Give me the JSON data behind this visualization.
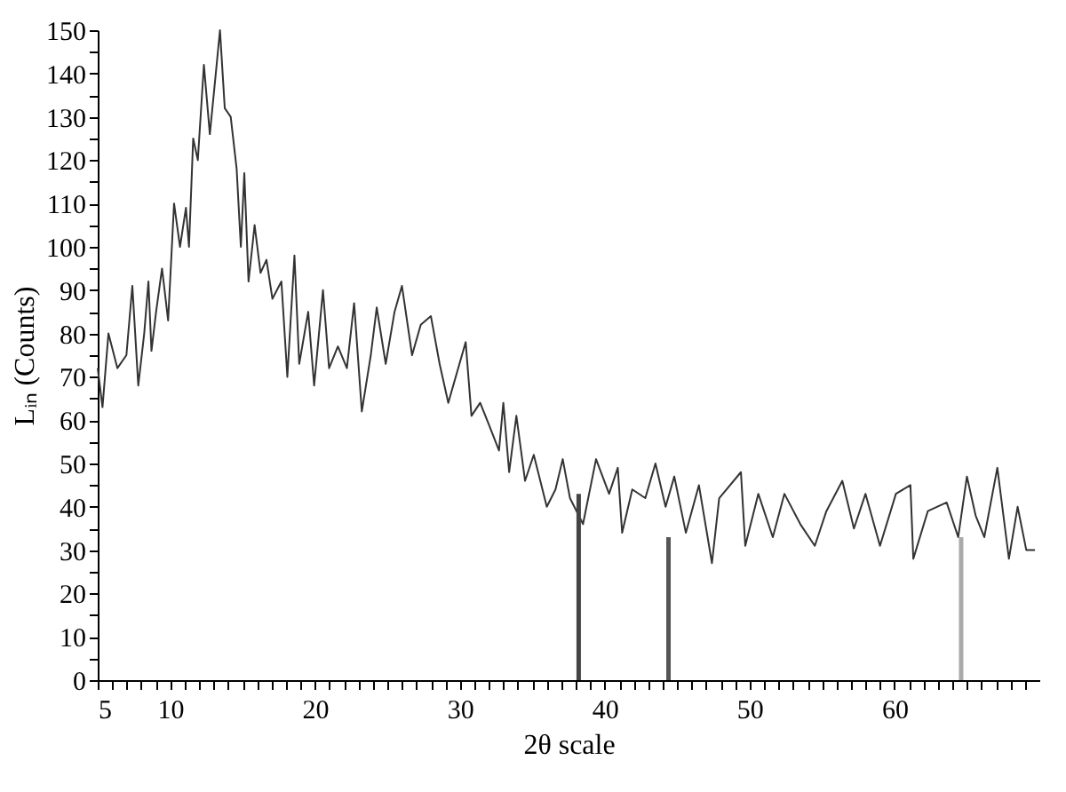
{
  "chart_data": {
    "type": "line",
    "xlabel": "2θ scale",
    "ylabel": "Lᵢₙ (Counts)",
    "xlim": [
      5,
      70
    ],
    "ylim": [
      0,
      150
    ],
    "xticks": [
      5,
      {
        "value": 6,
        "label": null
      },
      {
        "value": 7,
        "label": null
      },
      {
        "value": 8,
        "label": null
      },
      {
        "value": 9,
        "label": null
      },
      10,
      {
        "value": 11,
        "label": null
      },
      {
        "value": 12,
        "label": null
      },
      {
        "value": 13,
        "label": null
      },
      {
        "value": 14,
        "label": null
      },
      {
        "value": 15,
        "label": null
      },
      {
        "value": 16,
        "label": null
      },
      {
        "value": 17,
        "label": null
      },
      {
        "value": 18,
        "label": null
      },
      {
        "value": 19,
        "label": null
      },
      20,
      {
        "value": 21,
        "label": null
      },
      {
        "value": 22,
        "label": null
      },
      {
        "value": 23,
        "label": null
      },
      {
        "value": 24,
        "label": null
      },
      {
        "value": 25,
        "label": null
      },
      {
        "value": 26,
        "label": null
      },
      {
        "value": 27,
        "label": null
      },
      {
        "value": 28,
        "label": null
      },
      {
        "value": 29,
        "label": null
      },
      30,
      {
        "value": 31,
        "label": null
      },
      {
        "value": 32,
        "label": null
      },
      {
        "value": 33,
        "label": null
      },
      {
        "value": 34,
        "label": null
      },
      {
        "value": 35,
        "label": null
      },
      {
        "value": 36,
        "label": null
      },
      {
        "value": 37,
        "label": null
      },
      {
        "value": 38,
        "label": null
      },
      {
        "value": 39,
        "label": null
      },
      40,
      {
        "value": 41,
        "label": null
      },
      {
        "value": 42,
        "label": null
      },
      {
        "value": 43,
        "label": null
      },
      {
        "value": 44,
        "label": null
      },
      {
        "value": 45,
        "label": null
      },
      {
        "value": 46,
        "label": null
      },
      {
        "value": 47,
        "label": null
      },
      {
        "value": 48,
        "label": null
      },
      {
        "value": 49,
        "label": null
      },
      50,
      {
        "value": 51,
        "label": null
      },
      {
        "value": 52,
        "label": null
      },
      {
        "value": 53,
        "label": null
      },
      {
        "value": 54,
        "label": null
      },
      {
        "value": 55,
        "label": null
      },
      {
        "value": 56,
        "label": null
      },
      {
        "value": 57,
        "label": null
      },
      {
        "value": 58,
        "label": null
      },
      {
        "value": 59,
        "label": null
      },
      60,
      {
        "value": 61,
        "label": null
      },
      {
        "value": 62,
        "label": null
      },
      {
        "value": 63,
        "label": null
      },
      {
        "value": 64,
        "label": null
      },
      {
        "value": 65,
        "label": null
      },
      {
        "value": 66,
        "label": null
      },
      {
        "value": 67,
        "label": null
      },
      {
        "value": 68,
        "label": null
      },
      {
        "value": 69,
        "label": null
      }
    ],
    "yticks": [
      0,
      {
        "value": 5,
        "label": null
      },
      10,
      {
        "value": 15,
        "label": null
      },
      20,
      {
        "value": 25,
        "label": null
      },
      30,
      {
        "value": 35,
        "label": null
      },
      40,
      {
        "value": 45,
        "label": null
      },
      50,
      {
        "value": 55,
        "label": null
      },
      60,
      {
        "value": 65,
        "label": null
      },
      70,
      {
        "value": 75,
        "label": null
      },
      80,
      {
        "value": 85,
        "label": null
      },
      90,
      {
        "value": 95,
        "label": null
      },
      100,
      {
        "value": 105,
        "label": null
      },
      110,
      {
        "value": 115,
        "label": null
      },
      120,
      {
        "value": 125,
        "label": null
      },
      130,
      {
        "value": 135,
        "label": null
      },
      140,
      {
        "value": 145,
        "label": null
      },
      150
    ],
    "grid": false,
    "legend": false,
    "marker": "none",
    "line_style": "solid",
    "series": [
      {
        "color": "#333333",
        "x": [
          5.0,
          5.33,
          5.74,
          6.36,
          6.98,
          7.39,
          7.8,
          8.21,
          8.5,
          8.71,
          9.03,
          9.44,
          9.86,
          10.27,
          10.68,
          11.09,
          11.3,
          11.59,
          11.91,
          12.33,
          12.74,
          13.15,
          13.44,
          13.77,
          14.18,
          14.59,
          14.88,
          15.12,
          15.41,
          15.83,
          16.24,
          16.65,
          17.06,
          17.68,
          18.09,
          18.58,
          18.91,
          19.53,
          19.94,
          20.55,
          20.97,
          21.58,
          22.2,
          22.7,
          23.23,
          23.85,
          24.26,
          24.88,
          25.49,
          26.0,
          26.7,
          27.3,
          28.0,
          28.6,
          29.2,
          29.8,
          30.4,
          30.8,
          31.4,
          32.0,
          32.7,
          33.0,
          33.4,
          33.9,
          34.5,
          35.1,
          36.0,
          36.6,
          37.1,
          37.6,
          38.5,
          39.4,
          40.3,
          40.9,
          41.2,
          41.9,
          42.8,
          43.5,
          44.2,
          44.8,
          45.6,
          46.5,
          47.4,
          47.9,
          49.4,
          49.7,
          50.6,
          51.6,
          52.4,
          53.5,
          54.5,
          55.3,
          56.4,
          57.2,
          58.0,
          59.0,
          60.1,
          61.1,
          61.3,
          62.3,
          63.6,
          64.4,
          65.0,
          65.6,
          66.2,
          67.1,
          67.9,
          68.5,
          69.1,
          69.7
        ],
        "values": [
          72,
          63,
          80,
          72,
          75,
          91,
          68,
          80,
          92,
          76,
          85,
          95,
          83,
          110,
          100,
          109,
          100,
          125,
          120,
          142,
          126,
          140,
          150,
          132,
          130,
          118,
          100,
          117,
          92,
          105,
          94,
          97,
          88,
          92,
          70,
          98,
          73,
          85,
          68,
          90,
          72,
          77,
          72,
          87,
          62,
          75,
          86,
          73,
          85,
          91,
          75,
          82,
          84,
          73,
          64,
          71,
          78,
          61,
          64,
          59,
          53,
          64,
          48,
          61,
          46,
          52,
          40,
          44,
          51,
          42,
          36,
          51,
          43,
          49,
          34,
          44,
          42,
          50,
          40,
          47,
          34,
          45,
          27,
          42,
          48,
          31,
          43,
          33,
          43,
          36,
          31,
          39,
          46,
          35,
          43,
          31,
          43,
          45,
          28,
          39,
          41,
          33,
          47,
          38,
          33,
          49,
          28,
          40,
          30,
          30
        ]
      },
      {
        "type": "bar",
        "x": [
          38.2,
          44.4,
          64.6
        ],
        "values": [
          43,
          33,
          33
        ],
        "colors": [
          "#444444",
          "#555555",
          "#aaaaaa"
        ]
      }
    ]
  }
}
